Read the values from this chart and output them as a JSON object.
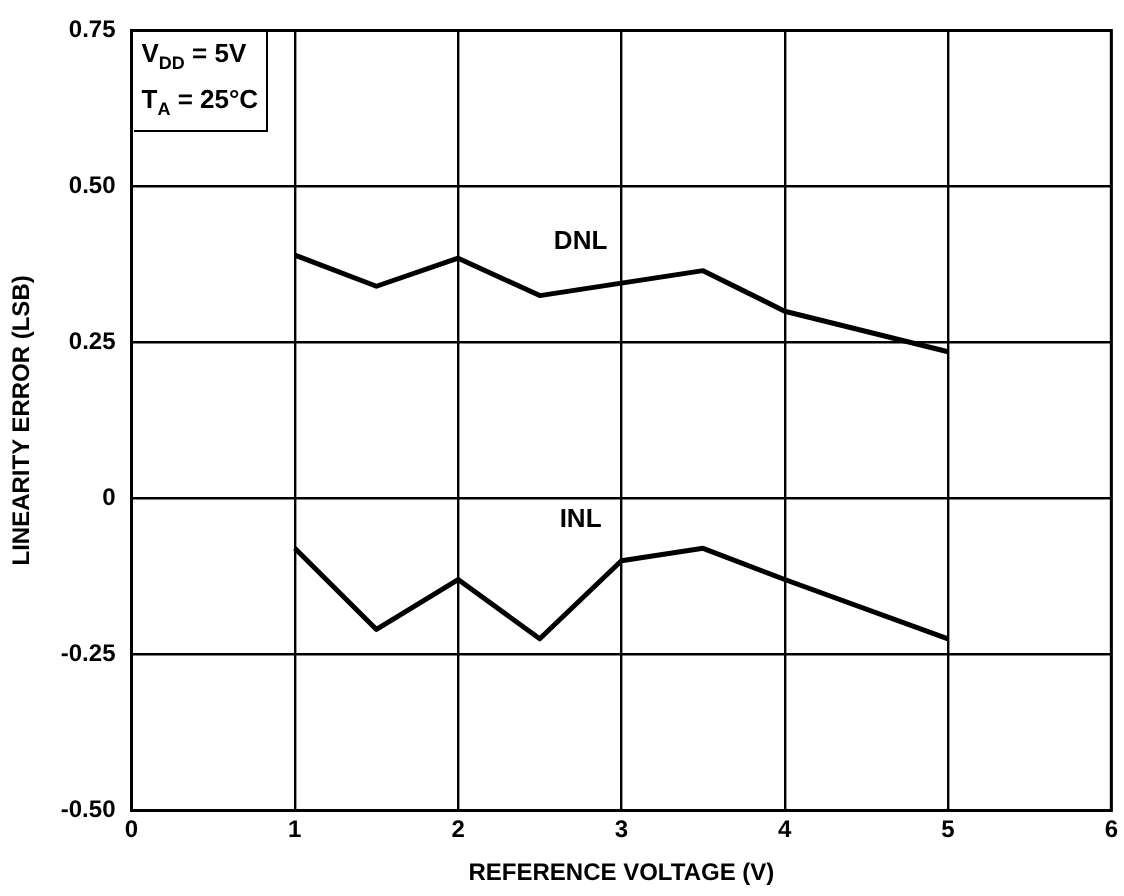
{
  "chart_data": {
    "type": "line",
    "xlabel": "REFERENCE VOLTAGE (V)",
    "ylabel": "LINEARITY ERROR (LSB)",
    "x": [
      1,
      1.5,
      2,
      2.5,
      3,
      3.5,
      4,
      5
    ],
    "series": [
      {
        "name": "DNL",
        "color": "#000000",
        "values": [
          0.39,
          0.34,
          0.385,
          0.325,
          0.345,
          0.365,
          0.3,
          0.235
        ]
      },
      {
        "name": "INL",
        "color": "#000000",
        "values": [
          -0.08,
          -0.21,
          -0.13,
          -0.225,
          -0.1,
          -0.08,
          -0.13,
          -0.225
        ]
      }
    ],
    "xlim": [
      0,
      6
    ],
    "xticks": [
      0,
      1,
      2,
      3,
      4,
      5,
      6
    ],
    "ylim": [
      -0.5,
      0.75
    ],
    "yticks": [
      {
        "value": -0.5,
        "label": "-0.50"
      },
      {
        "value": -0.25,
        "label": "-0.25"
      },
      0,
      0.25,
      {
        "value": 0.5,
        "label": "0.50"
      },
      0.75
    ],
    "annotations": [
      "V$_{DD}$ = 5V",
      "T$_{A}$ = 25°C"
    ],
    "grid": true,
    "legend": false,
    "marker": "none",
    "line_style": "solid"
  }
}
